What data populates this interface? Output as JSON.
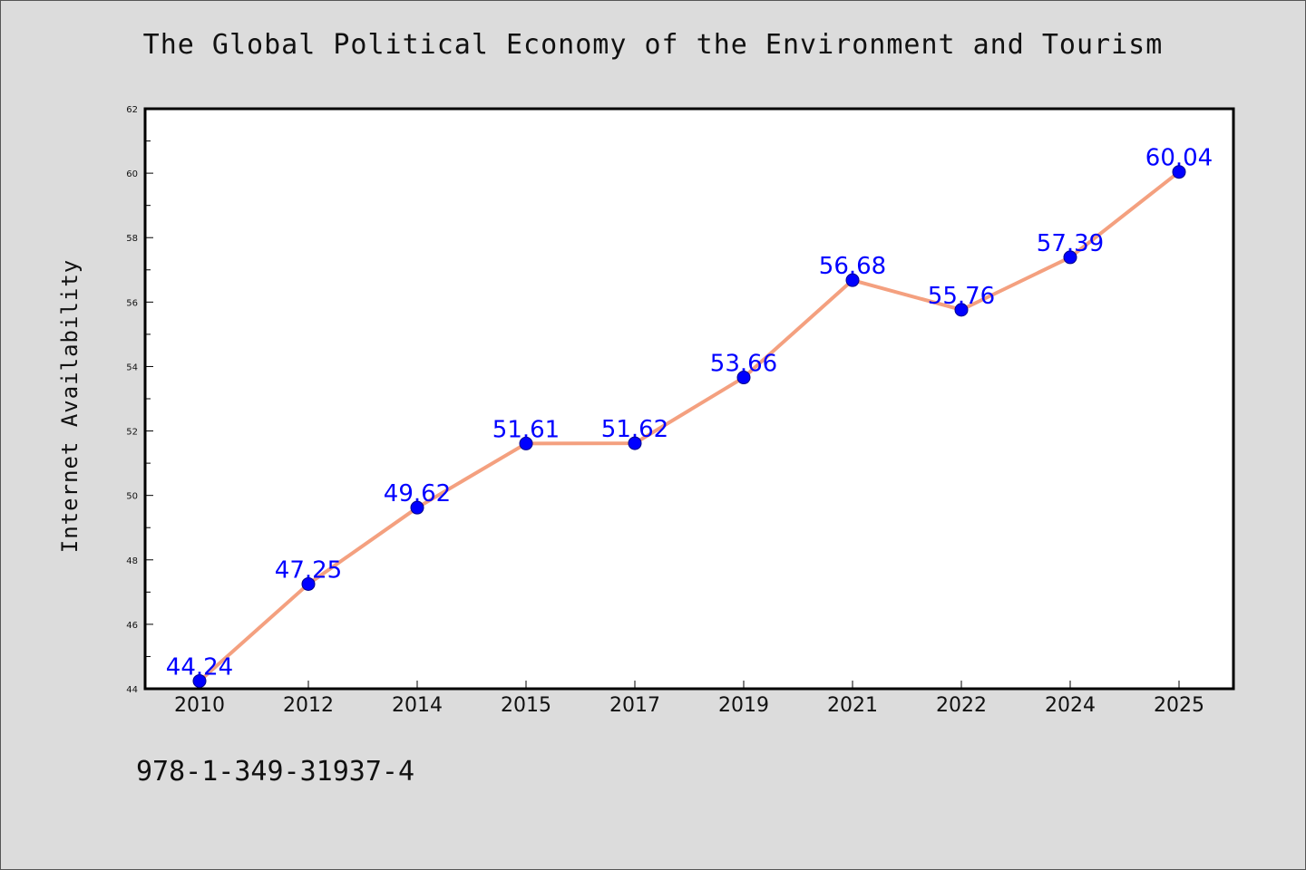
{
  "chart_data": {
    "type": "line",
    "title": "The Global Political Economy of the Environment and Tourism",
    "xlabel": "",
    "ylabel": "Internet Availability",
    "categories": [
      "2010",
      "2012",
      "2014",
      "2015",
      "2017",
      "2019",
      "2021",
      "2022",
      "2024",
      "2025"
    ],
    "series": [
      {
        "values": [
          44.24,
          47.25,
          49.62,
          51.61,
          51.62,
          53.66,
          56.68,
          55.76,
          57.39,
          60.04
        ],
        "labels": [
          "44.24",
          "47.25",
          "49.62",
          "51.61",
          "51.62",
          "53.66",
          "56.68",
          "55.76",
          "57.39",
          "60.04"
        ]
      }
    ],
    "ylim": [
      44,
      62
    ],
    "yticks": [
      "44",
      "46",
      "48",
      "50",
      "52",
      "54",
      "56",
      "58",
      "60",
      "62"
    ],
    "grid": false,
    "legend": "none",
    "colors": {
      "line": "#f4a07f",
      "marker": "#0000ff",
      "data_label": "#0000ff",
      "background": "#dcdcdc",
      "plot_background": "#ffffff"
    }
  },
  "footer": {
    "isbn": "978-1-349-31937-4"
  }
}
